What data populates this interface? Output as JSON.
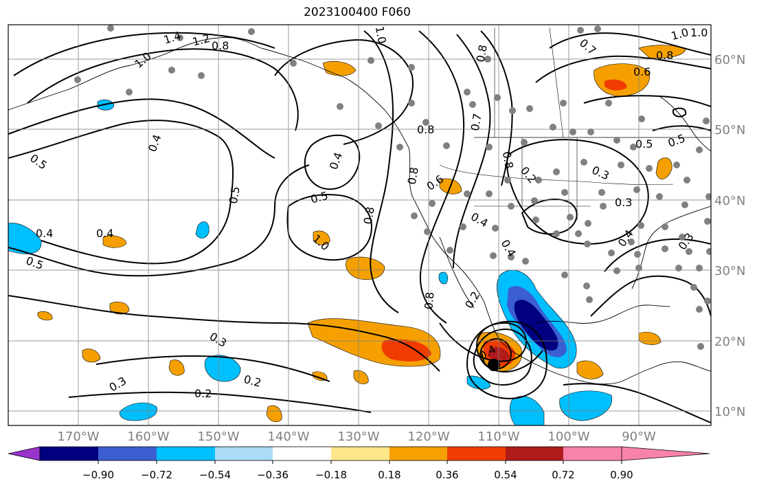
{
  "title": "2023100400 F060",
  "lat_labels": [
    "60°N",
    "50°N",
    "40°N",
    "30°N",
    "20°N",
    "10°N"
  ],
  "lon_labels": [
    "170°W",
    "160°W",
    "150°W",
    "140°W",
    "130°W",
    "120°W",
    "110°W",
    "100°W",
    "90°W"
  ],
  "contour_labels": [
    "1.4",
    "1.2",
    "1.0",
    "0.8",
    "0.8",
    "0.6",
    "1.0",
    "0.4",
    "0.5",
    "0.5",
    "0.4",
    "0.4",
    "0.5",
    "0.4",
    "0.5",
    "1.0",
    "0.8",
    "0.8",
    "0.6",
    "0.8",
    "0.4",
    "0.2",
    "0.3",
    "0.5",
    "0.4",
    "0.4",
    "0.3",
    "0.8",
    "0.2",
    "0.4",
    "0.3",
    "0.3",
    "0.2",
    "0.2",
    "0.7",
    "0.8",
    "1.0",
    "0.7",
    "0.8",
    "1.0",
    "0.5",
    "0.3"
  ],
  "colorbar": {
    "tick_labels": [
      "−0.90",
      "−0.72",
      "−0.54",
      "−0.36",
      "−0.18",
      "0.18",
      "0.36",
      "0.54",
      "0.72",
      "0.90"
    ],
    "colors": [
      "#9933cc",
      "#000080",
      "#3b5fd1",
      "#00bfff",
      "#aadcf8",
      "#ffffff",
      "#fde68a",
      "#f5a000",
      "#f03c00",
      "#b01c1c",
      "#f783ab"
    ]
  }
}
